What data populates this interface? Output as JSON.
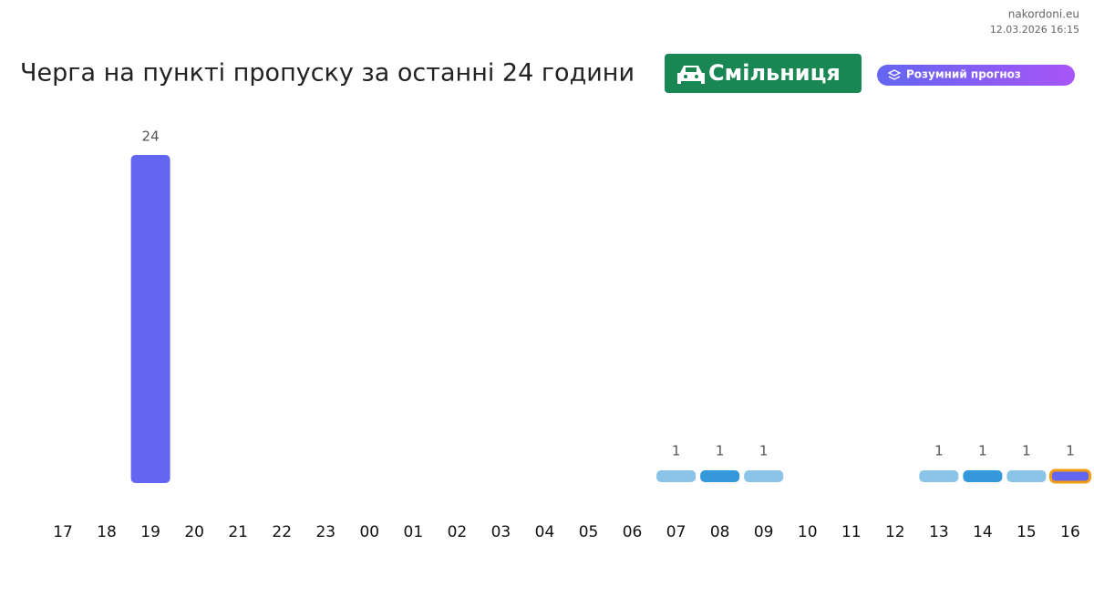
{
  "site": "nakordoni.eu",
  "timestamp": "12.03.2026 16:15",
  "badge": "Смільниця",
  "forecast_button": "Розумний прогноз",
  "chart_data": {
    "type": "bar",
    "title": "Черга на пункті пропуску за останні 24 години",
    "categories": [
      "17",
      "18",
      "19",
      "20",
      "21",
      "22",
      "23",
      "00",
      "01",
      "02",
      "03",
      "04",
      "05",
      "06",
      "07",
      "08",
      "09",
      "10",
      "11",
      "12",
      "13",
      "14",
      "15",
      "16"
    ],
    "values": [
      null,
      null,
      24,
      null,
      null,
      null,
      null,
      null,
      null,
      null,
      null,
      null,
      null,
      null,
      1,
      1,
      1,
      null,
      null,
      null,
      1,
      1,
      1,
      1
    ],
    "colors": [
      null,
      null,
      "#6366f1",
      null,
      null,
      null,
      null,
      null,
      null,
      null,
      null,
      null,
      null,
      null,
      "#8ac4e8",
      "#3498db",
      "#8ac4e8",
      null,
      null,
      null,
      "#8ac4e8",
      "#3498db",
      "#8ac4e8",
      "#6366f1"
    ],
    "highlight_color": "#f39c12",
    "ylim": [
      0,
      24
    ]
  }
}
